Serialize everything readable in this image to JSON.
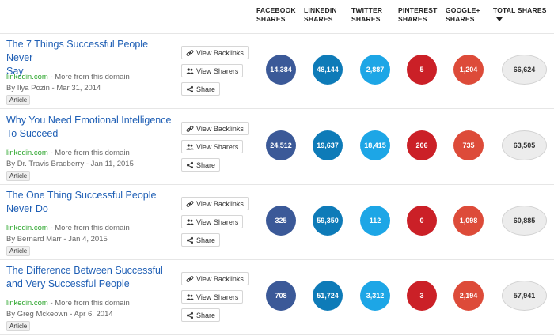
{
  "columns": {
    "facebook": "FACEBOOK SHARES",
    "linkedin": "LINKEDIN SHARES",
    "twitter": "TWITTER SHARES",
    "pinterest": "PINTEREST SHARES",
    "googleplus": "GOOGLE+ SHARES",
    "total": "TOTAL SHARES"
  },
  "colors": {
    "facebook": "#3b5998",
    "linkedin": "#0e7bb8",
    "twitter": "#1da6e6",
    "pinterest": "#cb2027",
    "googleplus": "#dd4b39"
  },
  "buttons": {
    "backlinks": "View Backlinks",
    "sharers": "View Sharers",
    "share": "Share"
  },
  "icons": {
    "backlinks": "link-icon",
    "sharers": "users-icon",
    "share": "share-icon"
  },
  "rows": [
    {
      "title_line1": "The 7 Things Successful People Never",
      "title_line2": "Say",
      "domain": "linkedin.com",
      "more": " - More from this domain",
      "author": "By Ilya Pozin - Mar 31, 2014",
      "type": "Article",
      "facebook": "14,384",
      "linkedin": "48,144",
      "twitter": "2,887",
      "pinterest": "5",
      "googleplus": "1,204",
      "total": "66,624"
    },
    {
      "title_line1": "Why You Need Emotional Intelligence",
      "title_line2": "To Succeed",
      "domain": "linkedin.com",
      "more": " - More from this domain",
      "author": "By Dr. Travis Bradberry - Jan 11, 2015",
      "type": "Article",
      "facebook": "24,512",
      "linkedin": "19,637",
      "twitter": "18,415",
      "pinterest": "206",
      "googleplus": "735",
      "total": "63,505"
    },
    {
      "title_line1": "The One Thing Successful People",
      "title_line2": "Never Do",
      "domain": "linkedin.com",
      "more": " - More from this domain",
      "author": "By Bernard Marr - Jan 4, 2015",
      "type": "Article",
      "facebook": "325",
      "linkedin": "59,350",
      "twitter": "112",
      "pinterest": "0",
      "googleplus": "1,098",
      "total": "60,885"
    },
    {
      "title_line1": "The Difference Between Successful",
      "title_line2": "and Very Successful People",
      "domain": "linkedin.com",
      "more": " - More from this domain",
      "author": "By Greg Mckeown - Apr 6, 2014",
      "type": "Article",
      "facebook": "708",
      "linkedin": "51,724",
      "twitter": "3,312",
      "pinterest": "3",
      "googleplus": "2,194",
      "total": "57,941"
    }
  ]
}
